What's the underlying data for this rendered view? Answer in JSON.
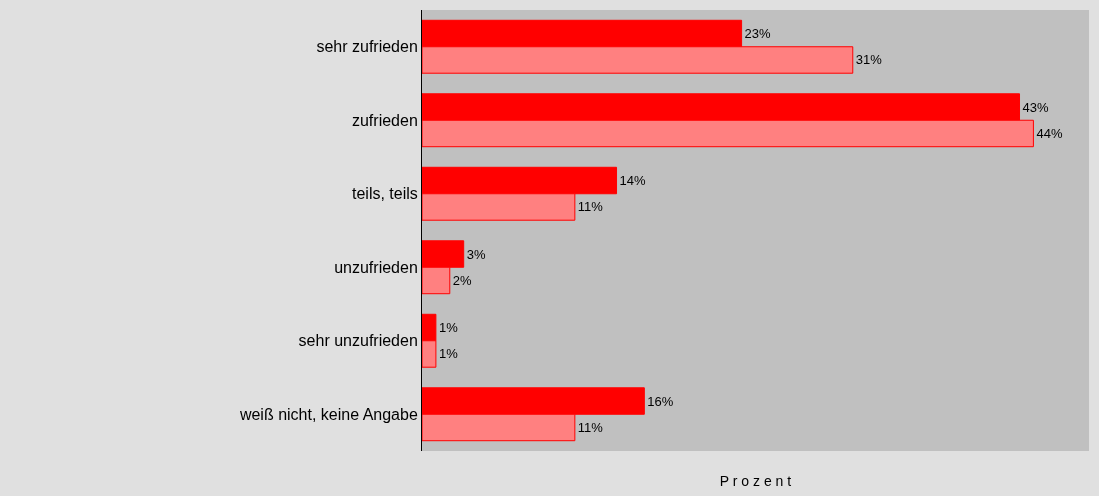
{
  "chart_data": {
    "type": "bar",
    "orientation": "horizontal",
    "xlabel": "P r o z e n t",
    "categories": [
      "sehr zufrieden",
      "zufrieden",
      "teils, teils",
      "unzufrieden",
      "sehr unzufrieden",
      "weiß nicht, keine Angabe"
    ],
    "series": [
      {
        "color": "#ff0000",
        "values": [
          23,
          43,
          14,
          3,
          1,
          16
        ],
        "value_labels": [
          "23%",
          "43%",
          "14%",
          "3%",
          "1%",
          "16%"
        ]
      },
      {
        "color": "#ff8080",
        "values": [
          31,
          44,
          11,
          2,
          1,
          11
        ],
        "value_labels": [
          "31%",
          "44%",
          "11%",
          "2%",
          "1%",
          "11%"
        ]
      }
    ],
    "xlim": [
      0,
      48
    ],
    "tick_labels": "y",
    "grid": false,
    "legend": false
  }
}
